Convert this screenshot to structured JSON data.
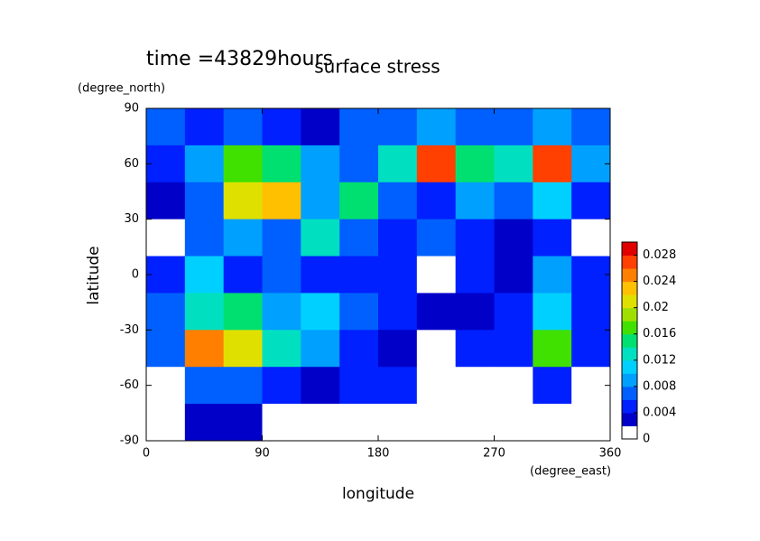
{
  "chart_data": {
    "type": "heatmap",
    "title": "surface stress",
    "subtitle": "time =43829hours",
    "x_label": "longitude",
    "x_unit": "(degree_east)",
    "y_label": "latitude",
    "y_unit": "(degree_north)",
    "x": [
      15,
      45,
      75,
      105,
      135,
      165,
      195,
      225,
      255,
      285,
      315,
      345
    ],
    "y": [
      80,
      60,
      40,
      20,
      0,
      -20,
      -40,
      -60,
      -80
    ],
    "z": [
      [
        0.006,
        0.005,
        0.006,
        0.004,
        0.003,
        0.007,
        0.006,
        0.008,
        0.006,
        0.007,
        0.008,
        0.006
      ],
      [
        0.004,
        0.008,
        0.016,
        0.014,
        0.008,
        0.006,
        0.012,
        0.026,
        0.014,
        0.012,
        0.026,
        0.008
      ],
      [
        0.002,
        0.006,
        0.02,
        0.022,
        0.008,
        0.014,
        0.006,
        0.004,
        0.008,
        0.006,
        0.01,
        0.004
      ],
      [
        0.001,
        0.006,
        0.008,
        0.006,
        0.012,
        0.006,
        0.004,
        0.006,
        0.004,
        0.002,
        0.004,
        0.001
      ],
      [
        0.004,
        0.01,
        0.004,
        0.006,
        0.004,
        0.004,
        0.004,
        0.001,
        0.004,
        0.002,
        0.008,
        0.004
      ],
      [
        0.006,
        0.012,
        0.014,
        0.008,
        0.01,
        0.006,
        0.004,
        0.002,
        0.002,
        0.004,
        0.01,
        0.004
      ],
      [
        0.006,
        0.024,
        0.02,
        0.012,
        0.008,
        0.004,
        0.002,
        0.001,
        0.004,
        0.004,
        0.016,
        0.004
      ],
      [
        0.001,
        0.006,
        0.006,
        0.004,
        0.002,
        0.004,
        0.004,
        0.001,
        0.001,
        0.001,
        0.004,
        0.001
      ],
      [
        0.001,
        0.002,
        0.002,
        0.001,
        0.001,
        0.001,
        0.001,
        0.001,
        0.001,
        0.001,
        0.001,
        0.001
      ]
    ],
    "xlim": [
      0,
      360
    ],
    "xticks": [
      0,
      90,
      180,
      270,
      360
    ],
    "ylim": [
      -90,
      90
    ],
    "yticks": [
      -90,
      -60,
      -30,
      0,
      30,
      60,
      90
    ],
    "clim": [
      0,
      0.03
    ],
    "cticks": [
      0,
      0.004,
      0.008,
      0.012,
      0.016,
      0.02,
      0.024,
      0.028
    ],
    "colors": [
      "#ffffff",
      "#0000c8",
      "#0020ff",
      "#0060ff",
      "#00a0ff",
      "#00d0ff",
      "#00e0c0",
      "#00e070",
      "#40e000",
      "#a0e000",
      "#e0e000",
      "#ffc000",
      "#ff8000",
      "#ff4000",
      "#e00000"
    ]
  }
}
